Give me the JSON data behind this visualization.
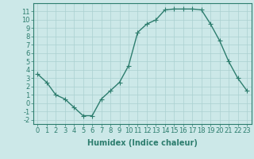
{
  "x": [
    0,
    1,
    2,
    3,
    4,
    5,
    6,
    7,
    8,
    9,
    10,
    11,
    12,
    13,
    14,
    15,
    16,
    17,
    18,
    19,
    20,
    21,
    22,
    23
  ],
  "y": [
    3.5,
    2.5,
    1.0,
    0.5,
    -0.5,
    -1.5,
    -1.5,
    0.5,
    1.5,
    2.5,
    4.5,
    8.5,
    9.5,
    10.0,
    11.2,
    11.3,
    11.3,
    11.3,
    11.2,
    9.5,
    7.5,
    5.0,
    3.0,
    1.5
  ],
  "line_color": "#2d7d6e",
  "marker": "+",
  "marker_size": 4,
  "linewidth": 1.0,
  "bg_color": "#cce8e8",
  "grid_color": "#aad0d0",
  "xlabel": "Humidex (Indice chaleur)",
  "xlim": [
    -0.5,
    23.5
  ],
  "ylim": [
    -2.5,
    12.0
  ],
  "xticks": [
    0,
    1,
    2,
    3,
    4,
    5,
    6,
    7,
    8,
    9,
    10,
    11,
    12,
    13,
    14,
    15,
    16,
    17,
    18,
    19,
    20,
    21,
    22,
    23
  ],
  "yticks": [
    -2,
    -1,
    0,
    1,
    2,
    3,
    4,
    5,
    6,
    7,
    8,
    9,
    10,
    11
  ],
  "xlabel_fontsize": 7,
  "tick_fontsize": 6,
  "tick_color": "#2d7d6e",
  "spine_color": "#2d7d6e"
}
